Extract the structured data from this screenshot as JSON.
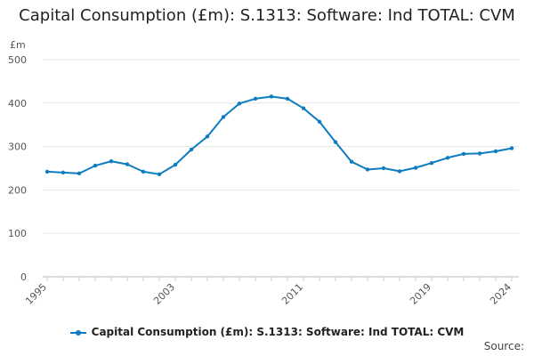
{
  "chart_data": {
    "type": "line",
    "title": "Capital Consumption (£m): S.1313: Software: Ind TOTAL: CVM",
    "y_unit": "£m",
    "ylim": [
      0,
      500
    ],
    "yticks": [
      0,
      100,
      200,
      300,
      400,
      500
    ],
    "xlim": [
      1995,
      2024
    ],
    "xticks": [
      1995,
      2003,
      2011,
      2019,
      2024
    ],
    "grid": true,
    "legend_position": "bottom",
    "x": [
      1995,
      1996,
      1997,
      1998,
      1999,
      2000,
      2001,
      2002,
      2003,
      2004,
      2005,
      2006,
      2007,
      2008,
      2009,
      2010,
      2011,
      2012,
      2013,
      2014,
      2015,
      2016,
      2017,
      2018,
      2019,
      2020,
      2021,
      2022,
      2023,
      2024
    ],
    "series": [
      {
        "name": "Capital Consumption (£m): S.1313: Software: Ind TOTAL: CVM",
        "color": "#0e7cc0",
        "values": [
          242,
          240,
          238,
          256,
          266,
          259,
          242,
          236,
          258,
          293,
          323,
          368,
          399,
          410,
          415,
          410,
          388,
          357,
          310,
          265,
          247,
          250,
          243,
          251,
          262,
          274,
          283,
          284,
          289,
          296
        ]
      }
    ]
  },
  "source_label": "Source:"
}
